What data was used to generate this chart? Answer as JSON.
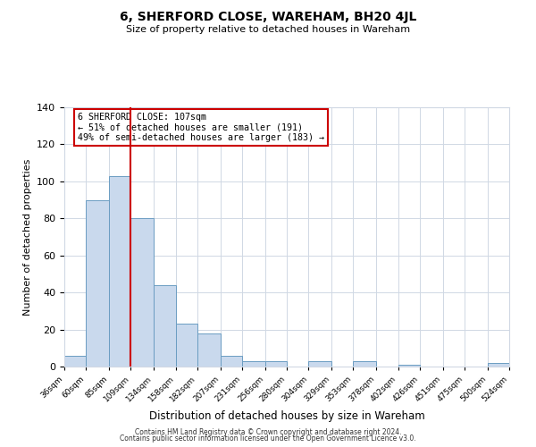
{
  "title": "6, SHERFORD CLOSE, WAREHAM, BH20 4JL",
  "subtitle": "Size of property relative to detached houses in Wareham",
  "xlabel": "Distribution of detached houses by size in Wareham",
  "ylabel": "Number of detached properties",
  "bin_edges": [
    36,
    60,
    85,
    109,
    134,
    158,
    182,
    207,
    231,
    256,
    280,
    304,
    329,
    353,
    378,
    402,
    426,
    451,
    475,
    500,
    524
  ],
  "bin_counts": [
    6,
    90,
    103,
    80,
    44,
    23,
    18,
    6,
    3,
    3,
    0,
    3,
    0,
    3,
    0,
    1,
    0,
    0,
    0,
    2
  ],
  "bar_color": "#c9d9ed",
  "bar_edge_color": "#6b9dc2",
  "vline_x": 109,
  "vline_color": "#cc0000",
  "annotation_text": "6 SHERFORD CLOSE: 107sqm\n← 51% of detached houses are smaller (191)\n49% of semi-detached houses are larger (183) →",
  "annotation_box_color": "#ffffff",
  "annotation_box_edge": "#cc0000",
  "ylim": [
    0,
    140
  ],
  "yticks": [
    0,
    20,
    40,
    60,
    80,
    100,
    120,
    140
  ],
  "tick_labels": [
    "36sqm",
    "60sqm",
    "85sqm",
    "109sqm",
    "134sqm",
    "158sqm",
    "182sqm",
    "207sqm",
    "231sqm",
    "256sqm",
    "280sqm",
    "304sqm",
    "329sqm",
    "353sqm",
    "378sqm",
    "402sqm",
    "426sqm",
    "451sqm",
    "475sqm",
    "500sqm",
    "524sqm"
  ],
  "footer_line1": "Contains HM Land Registry data © Crown copyright and database right 2024.",
  "footer_line2": "Contains public sector information licensed under the Open Government Licence v3.0.",
  "background_color": "#ffffff",
  "grid_color": "#d0d8e4"
}
